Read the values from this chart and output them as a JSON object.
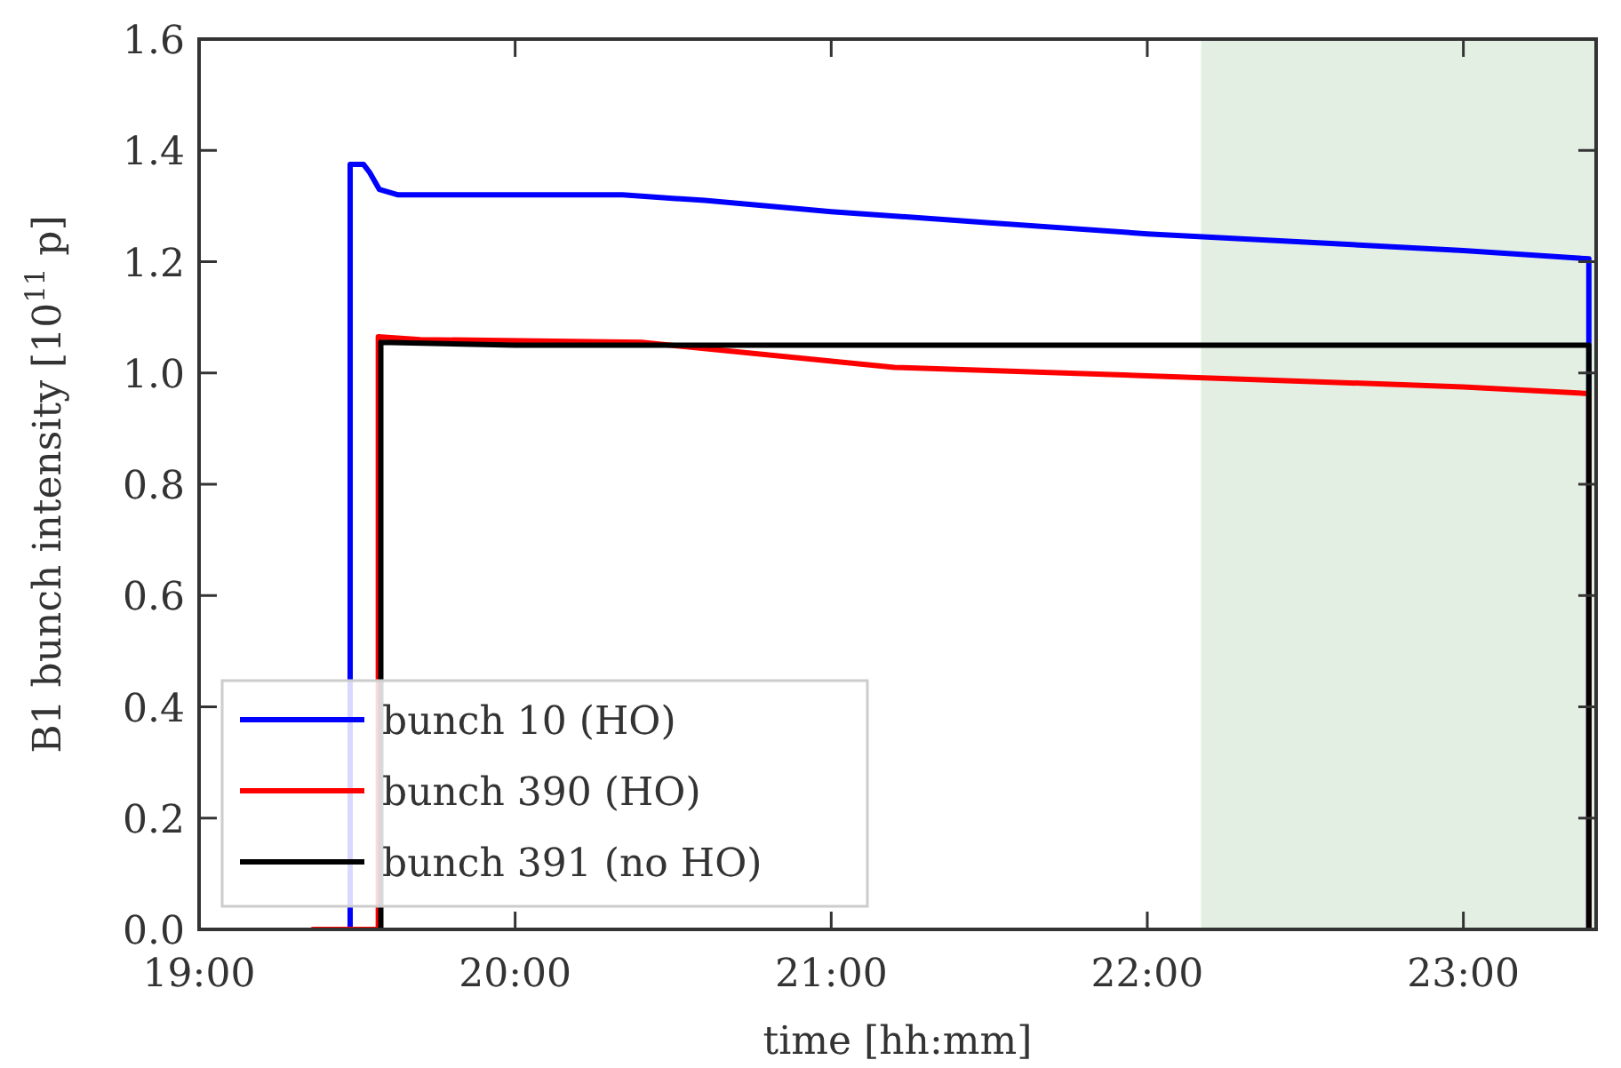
{
  "chart_data": {
    "type": "line",
    "xlabel": "time [hh:mm]",
    "ylabel": "B1 bunch intensity [10$^{11}$ p]",
    "xlim": [
      19,
      23.42
    ],
    "xticks": [
      {
        "value": 19,
        "label": "19:00"
      },
      {
        "value": 20,
        "label": "20:00"
      },
      {
        "value": 21,
        "label": "21:00"
      },
      {
        "value": 22,
        "label": "22:00"
      },
      {
        "value": 23,
        "label": "23:00"
      }
    ],
    "ylim": [
      0,
      1.6
    ],
    "yticks": [
      {
        "value": 0,
        "label": "0.0"
      },
      {
        "value": 0.2,
        "label": "0.2"
      },
      {
        "value": 0.4,
        "label": "0.4"
      },
      {
        "value": 0.6,
        "label": "0.6"
      },
      {
        "value": 0.8,
        "label": "0.8"
      },
      {
        "value": 1,
        "label": "1.0"
      },
      {
        "value": 1.2,
        "label": "1.2"
      },
      {
        "value": 1.4,
        "label": "1.4"
      },
      {
        "value": 1.6,
        "label": "1.6"
      }
    ],
    "bands": [
      {
        "axis": "x",
        "from": 22.17,
        "to": 23.42,
        "color": "#e3efe3"
      }
    ],
    "grid": false,
    "legend": "bottom left",
    "marker": "none",
    "line_style": "solid",
    "series": [
      {
        "name": "bunch 10 (HO)",
        "color": "#0000ff",
        "x": [
          19.478,
          19.478,
          19.52,
          19.54,
          19.57,
          19.63,
          20.0,
          20.34,
          20.6,
          21.0,
          21.5,
          22.0,
          22.5,
          23.0,
          23.397,
          23.397
        ],
        "values": [
          0,
          1.375,
          1.375,
          1.36,
          1.33,
          1.32,
          1.32,
          1.32,
          1.31,
          1.29,
          1.27,
          1.25,
          1.235,
          1.22,
          1.205,
          0
        ]
      },
      {
        "name": "bunch 390 (HO)",
        "color": "#ff0000",
        "x": [
          19.36,
          19.567,
          19.567,
          19.7,
          20.4,
          21.2,
          22.0,
          22.5,
          23.0,
          23.397,
          23.397
        ],
        "values": [
          0,
          0,
          1.065,
          1.06,
          1.055,
          1.01,
          0.995,
          0.985,
          0.975,
          0.963,
          0
        ]
      },
      {
        "name": "bunch 391 (no HO)",
        "color": "#000000",
        "x": [
          19.575,
          19.575,
          20.0,
          21.0,
          22.0,
          23.0,
          23.397,
          23.397
        ],
        "values": [
          0,
          1.055,
          1.05,
          1.05,
          1.05,
          1.05,
          1.05,
          0
        ]
      }
    ]
  }
}
